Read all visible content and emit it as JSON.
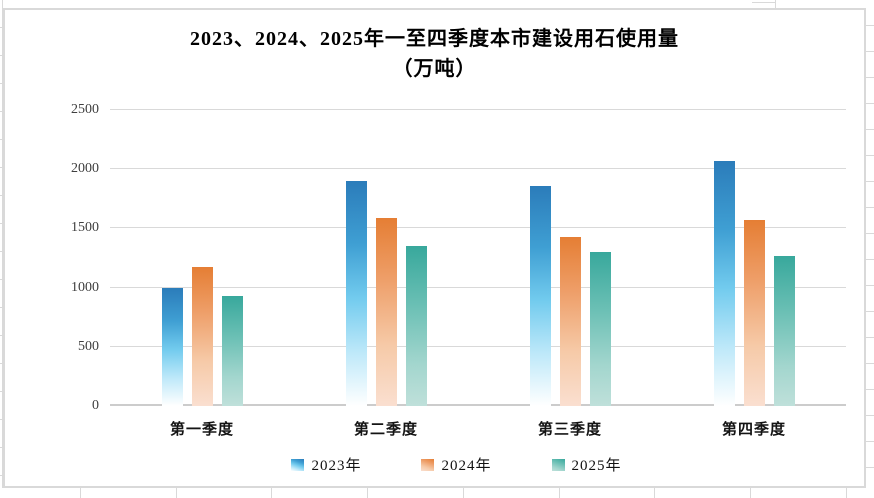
{
  "chart_data": {
    "type": "bar",
    "title_line1": "2023、2024、2025年一至四季度本市建设用石使用量",
    "title_line2": "（万吨）",
    "categories": [
      "第一季度",
      "第二季度",
      "第三季度",
      "第四季度"
    ],
    "series": [
      {
        "name": "2023年",
        "accent_color": "#2b7cba",
        "gradient": [
          "#2b7cba 0%",
          "#3f9fd3 28%",
          "#72cbee 52%",
          "#bde8f9 76%",
          "#ffffff 100%"
        ],
        "values": [
          1000,
          1900,
          1860,
          2070
        ]
      },
      {
        "name": "2024年",
        "accent_color": "#e57e34",
        "gradient": [
          "#e57e34 0%",
          "#ee9e68 32%",
          "#f6caa8 68%",
          "#fadfd0 100%"
        ],
        "values": [
          1175,
          1585,
          1425,
          1575
        ]
      },
      {
        "name": "2025年",
        "accent_color": "#38a89c",
        "gradient": [
          "#38a89c 0%",
          "#6cc0b5 38%",
          "#a3d6ce 74%",
          "#bfe0da 100%"
        ],
        "values": [
          925,
          1355,
          1300,
          1270
        ]
      }
    ],
    "y_ticks": [
      0,
      500,
      1000,
      1500,
      2000,
      2500
    ],
    "ylim": [
      0,
      2500
    ],
    "grid": true,
    "legend_position": "bottom",
    "gridline_color": "#d9d9d9"
  }
}
